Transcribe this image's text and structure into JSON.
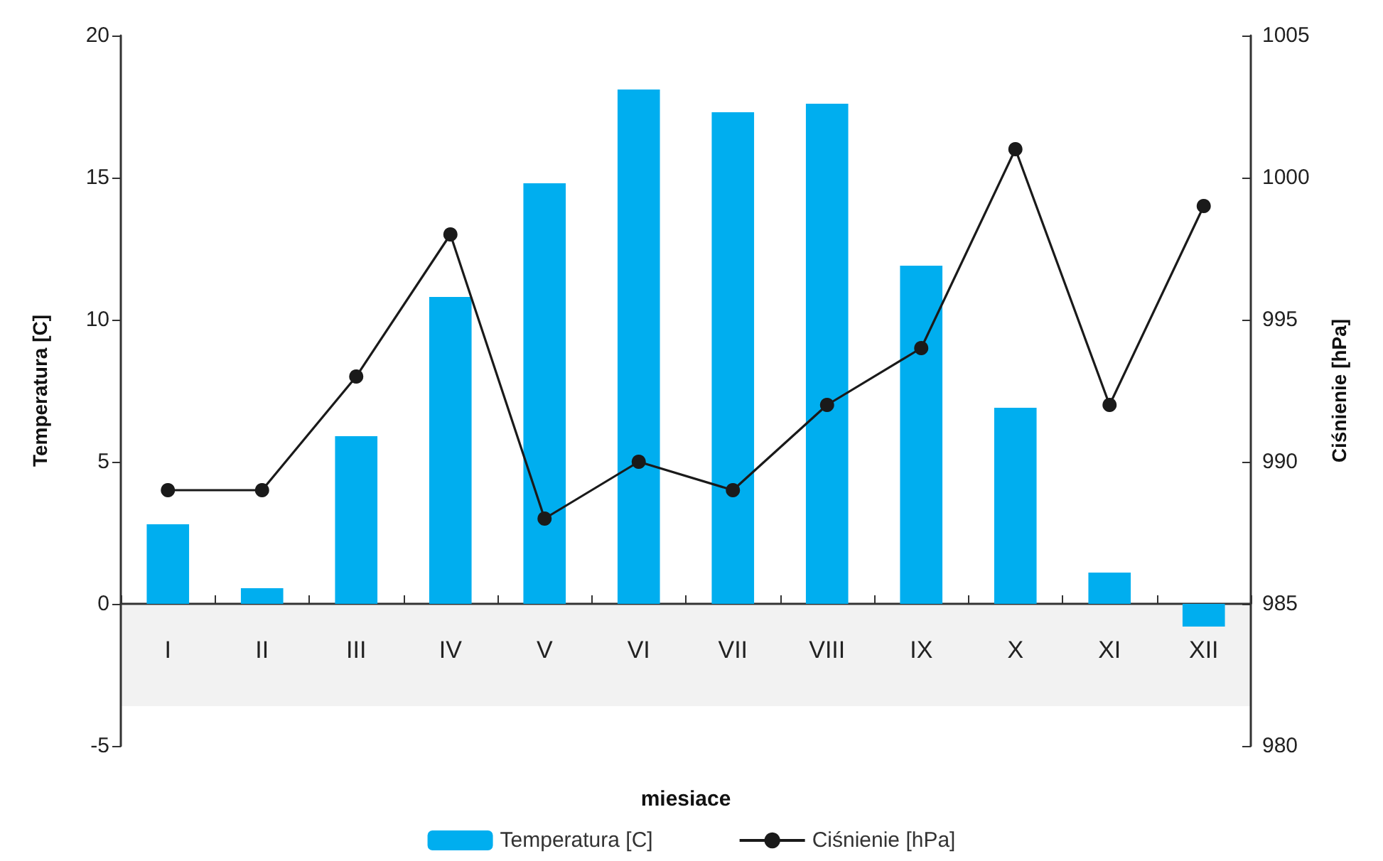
{
  "chart_data": {
    "type": "bar",
    "xlabel": "miesiace",
    "ylabel": "Temperatura [C]",
    "y2label": "Ciśnienie [hPa]",
    "categories": [
      "I",
      "II",
      "III",
      "IV",
      "V",
      "VI",
      "VII",
      "VIII",
      "IX",
      "X",
      "XI",
      "XII"
    ],
    "series": [
      {
        "name": "Temperatura [C]",
        "color": "#00aeef",
        "values": [
          2.8,
          0.55,
          5.9,
          10.8,
          14.8,
          18.1,
          17.3,
          17.6,
          11.9,
          6.9,
          1.1,
          -0.8
        ]
      },
      {
        "name": "Ciśnienie [hPa]",
        "type": "line",
        "axis": "y2",
        "color": "#1a1a1a",
        "marker": "circle",
        "values": [
          989,
          989,
          993,
          998,
          988,
          990,
          989,
          992,
          994,
          1001,
          992,
          999
        ]
      }
    ],
    "ylim": [
      -5,
      20
    ],
    "yticks": [
      -5,
      0,
      5,
      10,
      15,
      20
    ],
    "y2lim": [
      980,
      1005
    ],
    "y2ticks": [
      980,
      985,
      990,
      995,
      1000,
      1005
    ],
    "bands": [
      {
        "axis": "y",
        "from": -3.6,
        "to": 0,
        "color": "#f2f2f2"
      }
    ],
    "grid": false,
    "legend": "bottom"
  }
}
